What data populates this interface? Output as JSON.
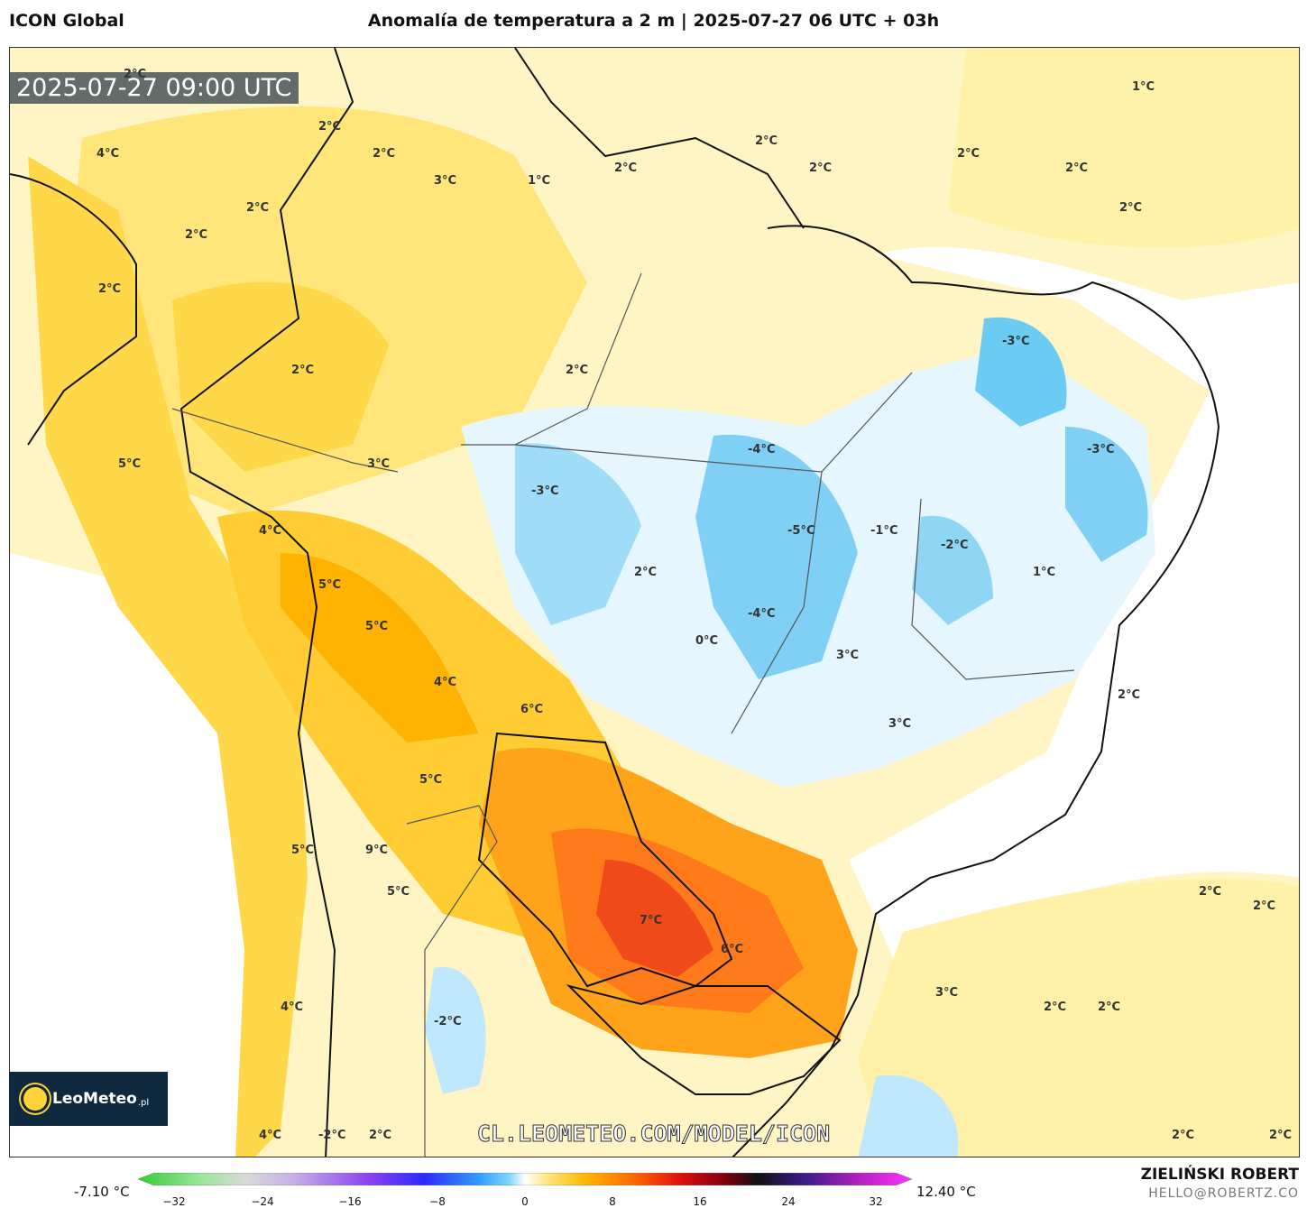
{
  "header": {
    "model": "ICON Global",
    "title": "Anomalía de temperatura a 2 m | 2025-07-27 06 UTC + 03h"
  },
  "map": {
    "timestamp": "2025-07-27 09:00 UTC",
    "labels": [
      {
        "text": "2°C"
      },
      {
        "text": "4°C"
      },
      {
        "text": "2°C"
      },
      {
        "text": "2°C"
      },
      {
        "text": "2°C"
      },
      {
        "text": "3°C"
      },
      {
        "text": "1°C"
      },
      {
        "text": "2°C"
      },
      {
        "text": "2°C"
      },
      {
        "text": "2°C"
      },
      {
        "text": "2°C"
      },
      {
        "text": "1°C"
      },
      {
        "text": "2°C"
      },
      {
        "text": "2°C"
      },
      {
        "text": "2°C"
      },
      {
        "text": "2°C"
      },
      {
        "text": "2°C"
      },
      {
        "text": "2°C"
      },
      {
        "text": "-3°C"
      },
      {
        "text": "5°C"
      },
      {
        "text": "3°C"
      },
      {
        "text": "-4°C"
      },
      {
        "text": "-3°C"
      },
      {
        "text": "-3°C"
      },
      {
        "text": "4°C"
      },
      {
        "text": "-5°C"
      },
      {
        "text": "-1°C"
      },
      {
        "text": "-2°C"
      },
      {
        "text": "5°C"
      },
      {
        "text": "2°C"
      },
      {
        "text": "1°C"
      },
      {
        "text": "5°C"
      },
      {
        "text": "-4°C"
      },
      {
        "text": "0°C"
      },
      {
        "text": "3°C"
      },
      {
        "text": "4°C"
      },
      {
        "text": "6°C"
      },
      {
        "text": "2°C"
      },
      {
        "text": "3°C"
      },
      {
        "text": "5°C"
      },
      {
        "text": "5°C"
      },
      {
        "text": "9°C"
      },
      {
        "text": "5°C"
      },
      {
        "text": "2°C"
      },
      {
        "text": "2°C"
      },
      {
        "text": "7°C"
      },
      {
        "text": "6°C"
      },
      {
        "text": "3°C"
      },
      {
        "text": "2°C"
      },
      {
        "text": "2°C"
      },
      {
        "text": "4°C"
      },
      {
        "text": "-2°C"
      },
      {
        "text": "4°C"
      },
      {
        "text": "-2°C"
      },
      {
        "text": "2°C"
      },
      {
        "text": "2°C"
      },
      {
        "text": "2°C"
      }
    ],
    "watermark_url": "CL.LEOMETEO.COM/MODEL/ICON",
    "logo_text": "LeoMeteo",
    "logo_suffix": ".pl"
  },
  "colorbar": {
    "min_label": "-7.10 °C",
    "max_label": "12.40 °C",
    "ticks": [
      "−32",
      "−24",
      "−16",
      "−8",
      "0",
      "8",
      "16",
      "24",
      "32"
    ]
  },
  "footer": {
    "author": "ZIELIŃSKI ROBERT",
    "email": "HELLO@ROBERTZ.CO"
  },
  "colors": {
    "warm_light": "#fff1a8",
    "warm": "#ffd84a",
    "warm_strong": "#ffb300",
    "hot": "#ff7a1a",
    "hottest": "#f04a1a",
    "cool": "#bfe8ff",
    "cold": "#55c8f2",
    "ocean": "#ffffff",
    "logo_bg": "#0f2a3f"
  }
}
